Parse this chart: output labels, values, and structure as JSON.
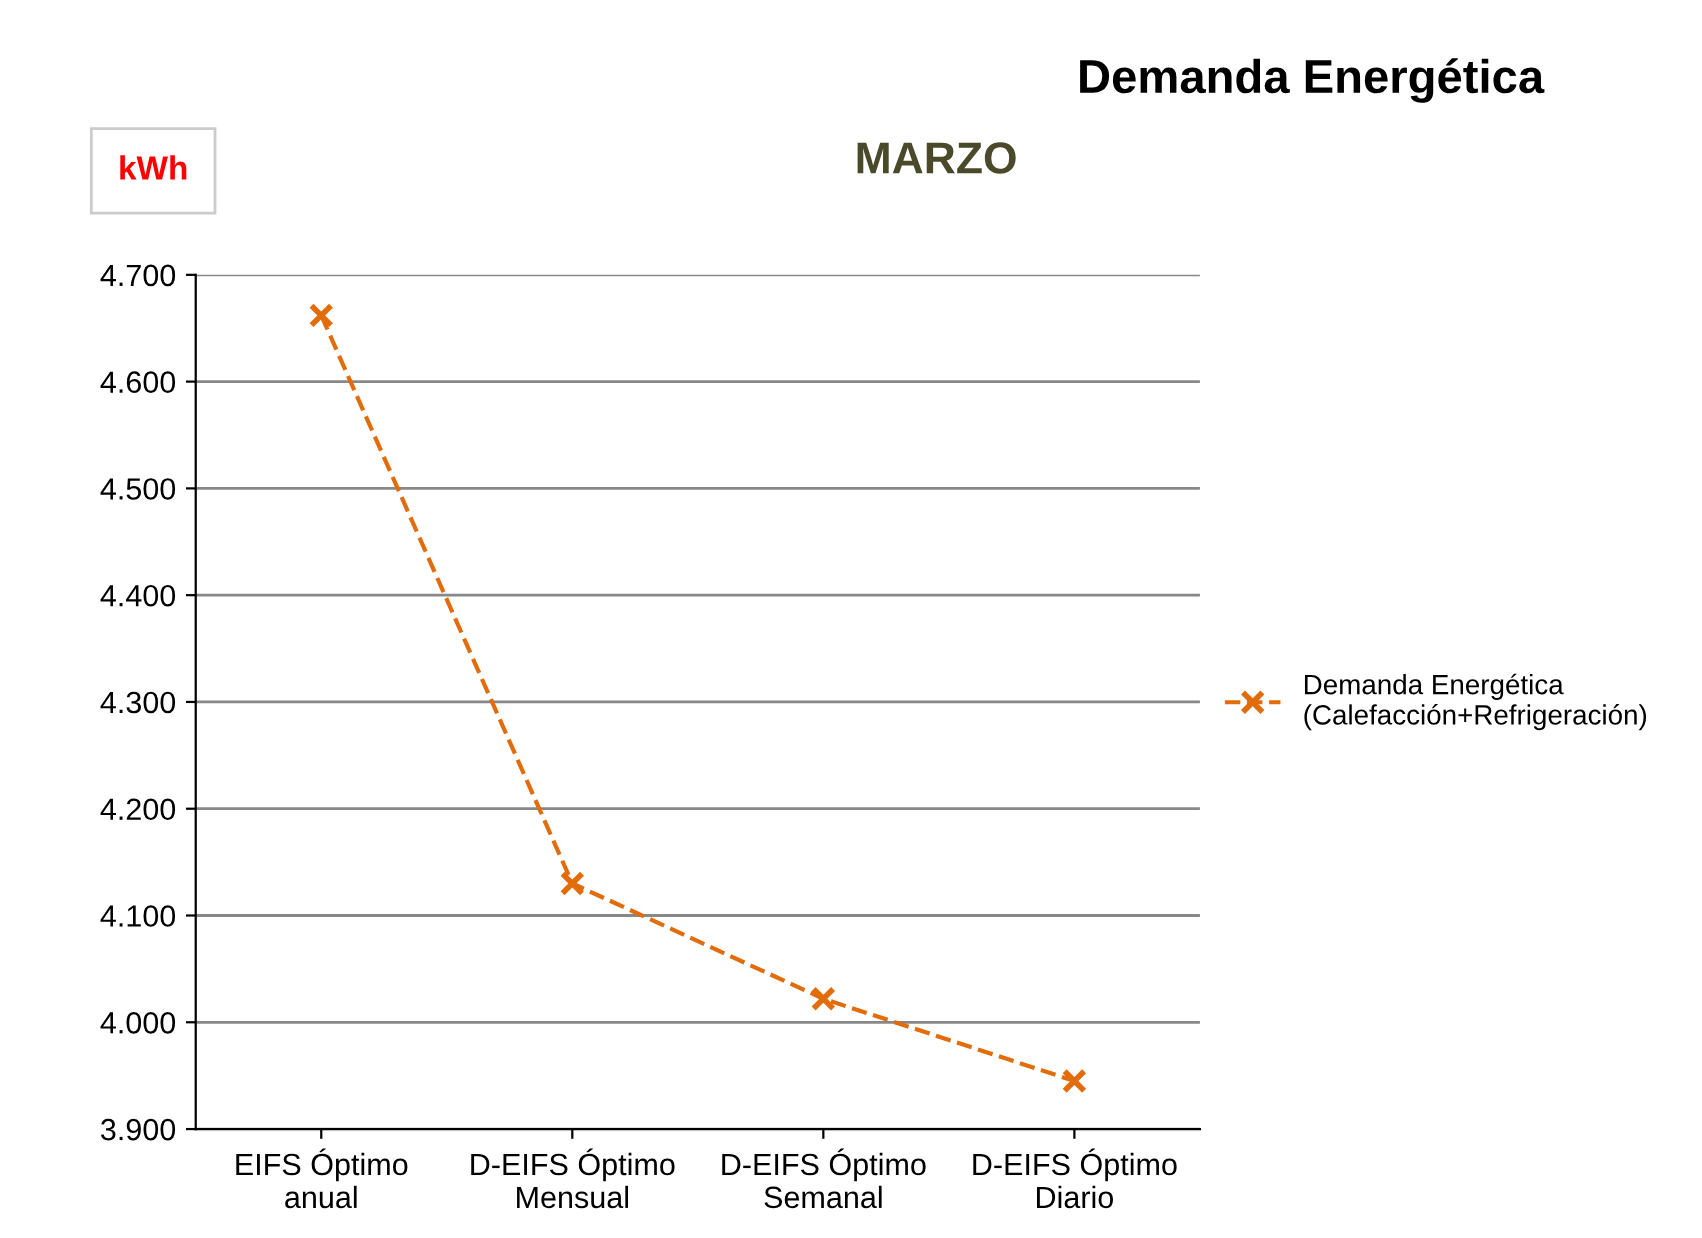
{
  "chart_data": {
    "type": "line",
    "title": "Demanda Energética",
    "subtitle": "MARZO",
    "ylabel": "kWh",
    "categories": [
      "EIFS Óptimo\nanual",
      "D-EIFS Óptimo\nMensual",
      "D-EIFS Óptimo\nSemanal",
      "D-EIFS Óptimo\nDiario"
    ],
    "series": [
      {
        "name": "Demanda Energética\n(Calefacción+Refrigeración)",
        "color": "#e36c0a",
        "values": [
          4662,
          4130,
          4022,
          3945
        ]
      }
    ],
    "ylim": [
      3900,
      4700
    ],
    "yticks": [
      {
        "value": 3900,
        "label": "3.900"
      },
      {
        "value": 4000,
        "label": "4.000"
      },
      {
        "value": 4100,
        "label": "4.100"
      },
      {
        "value": 4200,
        "label": "4.200"
      },
      {
        "value": 4300,
        "label": "4.300"
      },
      {
        "value": 4400,
        "label": "4.400"
      },
      {
        "value": 4500,
        "label": "4.500"
      },
      {
        "value": 4600,
        "label": "4.600"
      },
      {
        "value": 4700,
        "label": "4.700"
      }
    ],
    "grid": "y",
    "legend": "right",
    "marker": "cross",
    "line_style": "dashed"
  }
}
